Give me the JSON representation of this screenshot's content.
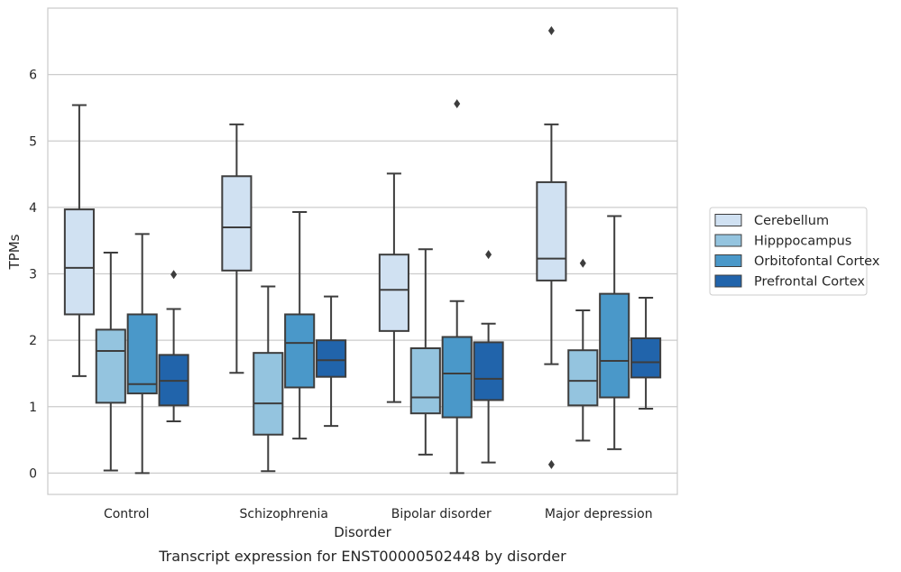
{
  "chart_data": {
    "type": "box",
    "title": "",
    "caption": "Transcript expression for ENST00000502448 by disorder",
    "xlabel": "Disorder",
    "ylabel": "TPMs",
    "ylim": [
      -0.32,
      7.0
    ],
    "yticks": [
      0,
      1,
      2,
      3,
      4,
      5,
      6
    ],
    "grid": "horizontal",
    "legend_position": "right",
    "categories": [
      "Control",
      "Schizophrenia",
      "Bipolar disorder",
      "Major depression"
    ],
    "series": [
      {
        "name": "Cerebellum",
        "color": "#d0e1f2",
        "boxes": [
          {
            "whisker_low": 1.46,
            "q1": 2.39,
            "median": 3.09,
            "q3": 3.97,
            "whisker_high": 5.54,
            "outliers": []
          },
          {
            "whisker_low": 1.51,
            "q1": 3.05,
            "median": 3.7,
            "q3": 4.47,
            "whisker_high": 5.25,
            "outliers": []
          },
          {
            "whisker_low": 1.07,
            "q1": 2.14,
            "median": 2.76,
            "q3": 3.29,
            "whisker_high": 4.51,
            "outliers": []
          },
          {
            "whisker_low": 1.64,
            "q1": 2.9,
            "median": 3.23,
            "q3": 4.38,
            "whisker_high": 5.25,
            "outliers": [
              0.13,
              6.66
            ]
          }
        ]
      },
      {
        "name": "Hipppocampus",
        "color": "#94c4df",
        "boxes": [
          {
            "whisker_low": 0.04,
            "q1": 1.06,
            "median": 1.84,
            "q3": 2.16,
            "whisker_high": 3.32,
            "outliers": []
          },
          {
            "whisker_low": 0.03,
            "q1": 0.58,
            "median": 1.05,
            "q3": 1.81,
            "whisker_high": 2.81,
            "outliers": []
          },
          {
            "whisker_low": 0.28,
            "q1": 0.9,
            "median": 1.14,
            "q3": 1.88,
            "whisker_high": 3.37,
            "outliers": []
          },
          {
            "whisker_low": 0.49,
            "q1": 1.02,
            "median": 1.39,
            "q3": 1.85,
            "whisker_high": 2.45,
            "outliers": [
              3.16
            ]
          }
        ]
      },
      {
        "name": "Orbitofontal Cortex",
        "color": "#4a98c9",
        "boxes": [
          {
            "whisker_low": 0.0,
            "q1": 1.2,
            "median": 1.34,
            "q3": 2.39,
            "whisker_high": 3.6,
            "outliers": []
          },
          {
            "whisker_low": 0.52,
            "q1": 1.29,
            "median": 1.96,
            "q3": 2.39,
            "whisker_high": 3.93,
            "outliers": []
          },
          {
            "whisker_low": 0.0,
            "q1": 0.84,
            "median": 1.5,
            "q3": 2.05,
            "whisker_high": 2.59,
            "outliers": [
              5.56
            ]
          },
          {
            "whisker_low": 0.36,
            "q1": 1.14,
            "median": 1.69,
            "q3": 2.7,
            "whisker_high": 3.87,
            "outliers": []
          }
        ]
      },
      {
        "name": "Prefrontal Cortex",
        "color": "#2164ab",
        "boxes": [
          {
            "whisker_low": 0.78,
            "q1": 1.02,
            "median": 1.39,
            "q3": 1.78,
            "whisker_high": 2.47,
            "outliers": [
              2.99
            ]
          },
          {
            "whisker_low": 0.71,
            "q1": 1.45,
            "median": 1.7,
            "q3": 2.0,
            "whisker_high": 2.66,
            "outliers": []
          },
          {
            "whisker_low": 0.16,
            "q1": 1.1,
            "median": 1.42,
            "q3": 1.97,
            "whisker_high": 2.25,
            "outliers": [
              3.29
            ]
          },
          {
            "whisker_low": 0.97,
            "q1": 1.44,
            "median": 1.67,
            "q3": 2.03,
            "whisker_high": 2.64,
            "outliers": []
          }
        ]
      }
    ]
  }
}
